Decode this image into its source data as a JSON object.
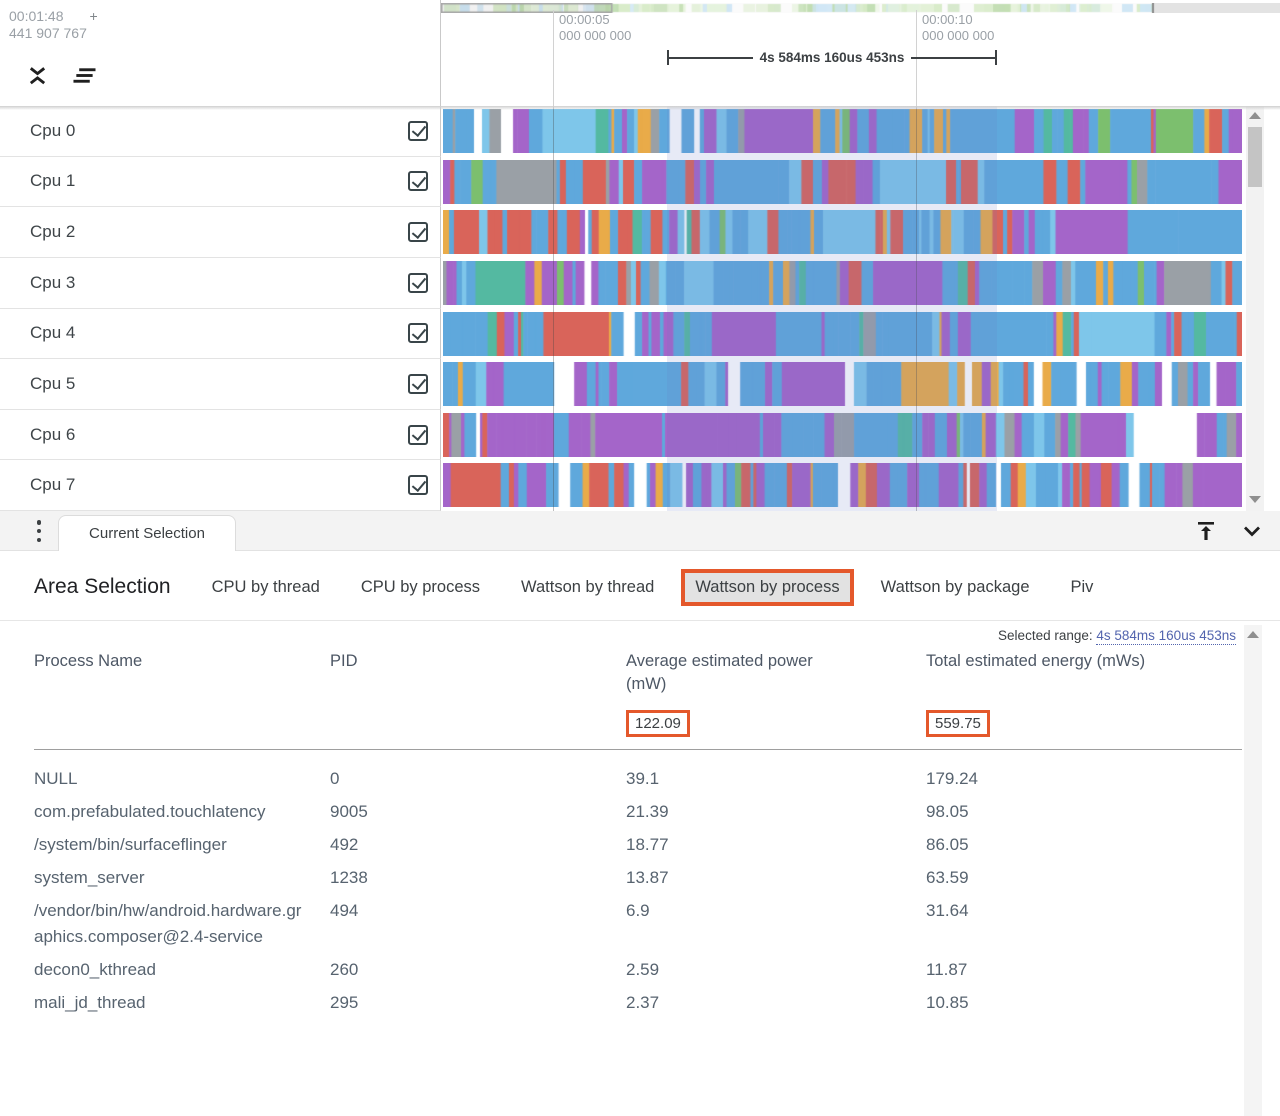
{
  "header": {
    "timestamp_line1": "00:01:48",
    "timestamp_plus": "+",
    "timestamp_line2": "441 907 767",
    "tick1": {
      "time": "00:00:05",
      "sub": "000 000 000"
    },
    "tick2": {
      "time": "00:00:10",
      "sub": "000 000 000"
    },
    "selection_duration": "4s 584ms 160us 453ns"
  },
  "icons": {
    "unfold_less": "collapse-all-tracks",
    "clear_all": "clear-all-tracks",
    "more_vert": "⋮",
    "vertical_align_top": "⤒",
    "expand_more": "⌄",
    "scroll_up": "▲",
    "scroll_down": "▼",
    "checkbox_checked": "☑"
  },
  "colors": {
    "accent_orange": "#e4582b",
    "link_blue": "#5264ae",
    "track_palette": {
      "blue": "#5fa8dc",
      "lightblue": "#7ec6ea",
      "purple": "#a465c9",
      "orange": "#e9ab49",
      "red": "#d9645a",
      "teal": "#54b9a1",
      "green": "#7cbf6e",
      "gray": "#9aa0a6",
      "white": "#ffffff"
    },
    "minimap_specks": [
      "#d9ecca",
      "#e6f3dc",
      "#cfe6f5",
      "#bfdcae"
    ]
  },
  "tracks": [
    {
      "name": "Cpu 0",
      "checked": true,
      "weights": {
        "blue": 40,
        "lightblue": 8,
        "purple": 18,
        "orange": 14,
        "red": 9,
        "teal": 4,
        "green": 2,
        "gray": 3,
        "white": 2
      }
    },
    {
      "name": "Cpu 1",
      "checked": true,
      "weights": {
        "blue": 42,
        "lightblue": 6,
        "purple": 18,
        "orange": 4,
        "red": 24,
        "teal": 2,
        "green": 1,
        "gray": 2,
        "white": 1
      }
    },
    {
      "name": "Cpu 2",
      "checked": true,
      "weights": {
        "blue": 48,
        "lightblue": 8,
        "purple": 10,
        "orange": 8,
        "red": 20,
        "teal": 3,
        "green": 1,
        "gray": 1,
        "white": 1
      }
    },
    {
      "name": "Cpu 3",
      "checked": true,
      "weights": {
        "blue": 50,
        "lightblue": 8,
        "purple": 16,
        "orange": 4,
        "red": 8,
        "teal": 2,
        "green": 1,
        "gray": 9,
        "white": 2
      }
    },
    {
      "name": "Cpu 4",
      "checked": true,
      "weights": {
        "blue": 62,
        "lightblue": 10,
        "purple": 12,
        "orange": 4,
        "red": 5,
        "teal": 3,
        "green": 2,
        "gray": 1,
        "white": 1
      }
    },
    {
      "name": "Cpu 5",
      "checked": true,
      "weights": {
        "blue": 48,
        "lightblue": 6,
        "purple": 26,
        "orange": 6,
        "red": 4,
        "teal": 1,
        "green": 1,
        "gray": 1,
        "white": 7
      }
    },
    {
      "name": "Cpu 6",
      "checked": true,
      "weights": {
        "blue": 26,
        "lightblue": 4,
        "purple": 48,
        "orange": 4,
        "red": 4,
        "teal": 3,
        "green": 1,
        "gray": 8,
        "white": 2
      }
    },
    {
      "name": "Cpu 7",
      "checked": true,
      "weights": {
        "blue": 30,
        "lightblue": 5,
        "purple": 34,
        "orange": 5,
        "red": 17,
        "teal": 1,
        "green": 1,
        "gray": 2,
        "white": 5
      }
    }
  ],
  "strip": {
    "tab_label": "Current Selection"
  },
  "details": {
    "title": "Area Selection",
    "tabs": [
      "CPU by thread",
      "CPU by process",
      "Wattson by thread",
      "Wattson by process",
      "Wattson by package",
      "Piv"
    ],
    "active_tab": "Wattson by process",
    "selected_range_label": "Selected range:",
    "selected_range_value": "4s 584ms 160us 453ns",
    "table": {
      "columns": [
        "Process Name",
        "PID",
        "Average estimated power (mW)",
        "Total estimated energy (mWs)"
      ],
      "summary": {
        "power": "122.09",
        "energy": "559.75"
      },
      "rows": [
        {
          "name": "NULL",
          "pid": "0",
          "power": "39.1",
          "energy": "179.24"
        },
        {
          "name": "com.prefabulated.touchlatency",
          "pid": "9005",
          "power": "21.39",
          "energy": "98.05"
        },
        {
          "name": "/system/bin/surfaceflinger",
          "pid": "492",
          "power": "18.77",
          "energy": "86.05"
        },
        {
          "name": "system_server",
          "pid": "1238",
          "power": "13.87",
          "energy": "63.59"
        },
        {
          "name": "/vendor/bin/hw/android.hardware.graphics.composer@2.4-service",
          "pid": "494",
          "power": "6.9",
          "energy": "31.64"
        },
        {
          "name": "decon0_kthread",
          "pid": "260",
          "power": "2.59",
          "energy": "11.87"
        },
        {
          "name": "mali_jd_thread",
          "pid": "295",
          "power": "2.37",
          "energy": "10.85"
        }
      ]
    }
  }
}
